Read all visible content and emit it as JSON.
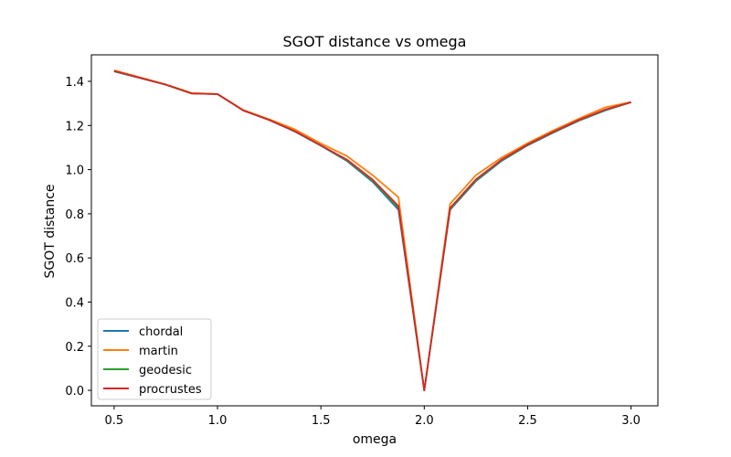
{
  "chart_data": {
    "type": "line",
    "title": "SGOT distance vs omega",
    "xlabel": "omega",
    "ylabel": "SGOT distance",
    "xlim": [
      0.39,
      3.13
    ],
    "ylim": [
      -0.07,
      1.52
    ],
    "xticks": [
      0.5,
      1.0,
      1.5,
      2.0,
      2.5,
      3.0
    ],
    "xtick_labels": [
      "0.5",
      "1.0",
      "1.5",
      "2.0",
      "2.5",
      "3.0"
    ],
    "yticks": [
      0.0,
      0.2,
      0.4,
      0.6,
      0.8,
      1.0,
      1.2,
      1.4
    ],
    "ytick_labels": [
      "0.0",
      "0.2",
      "0.4",
      "0.6",
      "0.8",
      "1.0",
      "1.2",
      "1.4"
    ],
    "grid": false,
    "legend_position": "lower-left",
    "x": [
      0.5,
      0.625,
      0.75,
      0.875,
      1.0,
      1.125,
      1.25,
      1.375,
      1.5,
      1.625,
      1.75,
      1.875,
      2.0,
      2.125,
      2.25,
      2.375,
      2.5,
      2.625,
      2.75,
      2.875,
      3.0
    ],
    "series": [
      {
        "name": "chordal",
        "color": "#1f77b4",
        "values": [
          1.445,
          1.415,
          1.385,
          1.345,
          1.342,
          1.268,
          1.225,
          1.172,
          1.108,
          1.04,
          0.945,
          0.818,
          0.0,
          0.818,
          0.948,
          1.04,
          1.11,
          1.168,
          1.222,
          1.268,
          1.305
        ]
      },
      {
        "name": "martin",
        "color": "#ff7f0e",
        "values": [
          1.45,
          1.418,
          1.386,
          1.347,
          1.343,
          1.27,
          1.228,
          1.182,
          1.118,
          1.062,
          0.975,
          0.875,
          0.0,
          0.845,
          0.975,
          1.055,
          1.12,
          1.178,
          1.232,
          1.282,
          1.306
        ]
      },
      {
        "name": "geodesic",
        "color": "#2ca02c",
        "values": [
          1.446,
          1.416,
          1.385,
          1.345,
          1.342,
          1.268,
          1.225,
          1.173,
          1.109,
          1.043,
          0.95,
          0.828,
          0.0,
          0.822,
          0.952,
          1.043,
          1.112,
          1.17,
          1.224,
          1.27,
          1.305
        ]
      },
      {
        "name": "procrustes",
        "color": "#d62728",
        "values": [
          1.447,
          1.416,
          1.385,
          1.345,
          1.342,
          1.268,
          1.225,
          1.174,
          1.11,
          1.046,
          0.955,
          0.835,
          0.0,
          0.826,
          0.956,
          1.046,
          1.114,
          1.172,
          1.226,
          1.272,
          1.305
        ]
      }
    ]
  }
}
